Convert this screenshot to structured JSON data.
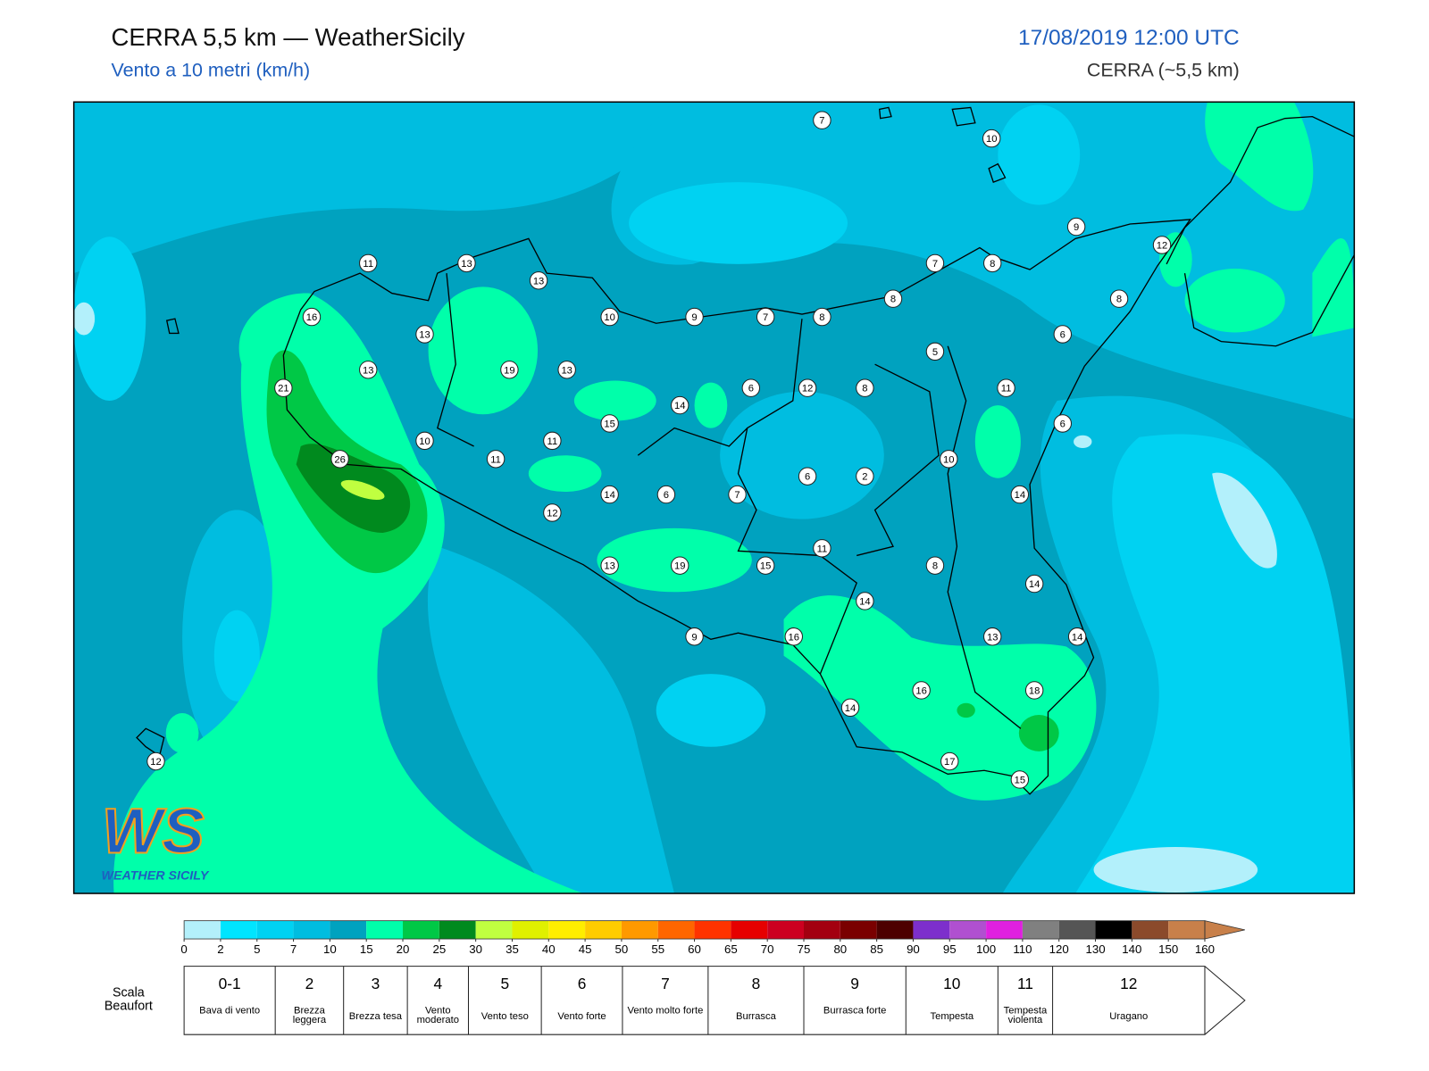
{
  "header": {
    "title": "CERRA 5,5 km — WeatherSicily",
    "subtitle": "Vento a 10 metri (km/h)",
    "datetime": "17/08/2019 12:00 UTC",
    "model": "CERRA (~5,5 km)"
  },
  "logo": {
    "mark": "WS",
    "name": "WEATHER SICILY"
  },
  "stations": [
    7,
    10,
    9,
    12,
    11,
    13,
    13,
    7,
    8,
    8,
    8,
    16,
    10,
    9,
    7,
    8,
    13,
    5,
    6,
    13,
    19,
    13,
    21,
    6,
    12,
    8,
    11,
    14,
    15,
    6,
    10,
    11,
    26,
    11,
    10,
    6,
    2,
    14,
    6,
    7,
    14,
    12,
    11,
    13,
    19,
    15,
    8,
    14,
    14,
    9,
    16,
    13,
    14,
    16,
    18,
    14,
    12,
    17,
    15
  ],
  "colorbar": {
    "ticks": [
      0,
      2,
      5,
      7,
      10,
      15,
      20,
      25,
      30,
      35,
      40,
      45,
      50,
      55,
      60,
      65,
      70,
      75,
      80,
      85,
      90,
      95,
      100,
      110,
      120,
      130,
      140,
      150,
      160
    ],
    "colors": [
      "#b3f0fb",
      "#00e5ff",
      "#00d2f2",
      "#00bde0",
      "#00a2bf",
      "#00ffaa",
      "#00c846",
      "#008a1e",
      "#c0ff40",
      "#e0f000",
      "#ffee00",
      "#ffcc00",
      "#ff9900",
      "#ff6600",
      "#ff3300",
      "#e60000",
      "#cc0020",
      "#a30010",
      "#7a0000",
      "#4d0000",
      "#7d2fcc",
      "#b050d0",
      "#e020e0",
      "#808080",
      "#555555",
      "#000000",
      "#8b4a2b",
      "#c8804a"
    ]
  },
  "beaufort": {
    "title": "Scala Beaufort",
    "levels": [
      {
        "force": "0-1",
        "name": "Bava di vento"
      },
      {
        "force": 2,
        "name": "Brezza leggera"
      },
      {
        "force": 3,
        "name": "Brezza tesa"
      },
      {
        "force": 4,
        "name": "Vento moderato"
      },
      {
        "force": 5,
        "name": "Vento teso"
      },
      {
        "force": 6,
        "name": "Vento forte"
      },
      {
        "force": 7,
        "name": "Vento molto forte"
      },
      {
        "force": 8,
        "name": "Burrasca"
      },
      {
        "force": 9,
        "name": "Burrasca forte"
      },
      {
        "force": 10,
        "name": "Tempesta"
      },
      {
        "force": 11,
        "name": "Tempesta violenta"
      },
      {
        "force": 12,
        "name": "Uragano"
      }
    ]
  }
}
